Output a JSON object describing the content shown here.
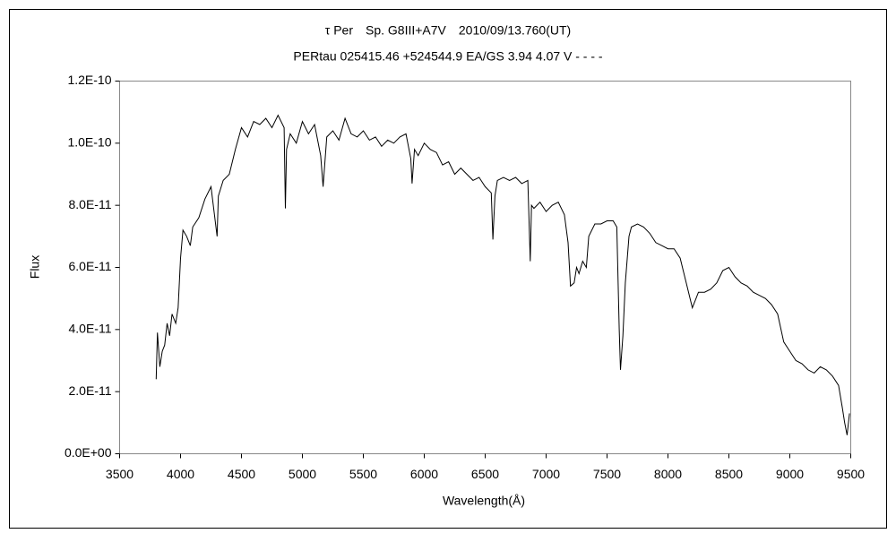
{
  "chart_data": {
    "type": "line",
    "title": "τ Per　Sp. G8III+A7V　2010/09/13.760(UT)",
    "subtitle": "PERtau 025415.46 +524544.9 EA/GS 3.94 4.07 V - - - -",
    "x_label": "Wavelength(Å)",
    "y_label": "Flux",
    "color": "#000000",
    "xlim": [
      3500,
      9500
    ],
    "xticks": [
      3500,
      4000,
      4500,
      5000,
      5500,
      6000,
      6500,
      7000,
      7500,
      8000,
      8500,
      9000,
      9500
    ],
    "ylim": [
      0,
      1.2e-10
    ],
    "yticks": [
      {
        "value": 0,
        "label": "0.0E+00"
      },
      {
        "value": 2e-11,
        "label": "2.0E-11"
      },
      {
        "value": 4e-11,
        "label": "4.0E-11"
      },
      {
        "value": 6e-11,
        "label": "6.0E-11"
      },
      {
        "value": 8e-11,
        "label": "8.0E-11"
      },
      {
        "value": 1e-10,
        "label": "1.0E-10"
      },
      {
        "value": 1.2e-10,
        "label": "1.2E-10"
      }
    ],
    "x": [
      3800,
      3810,
      3830,
      3850,
      3870,
      3890,
      3910,
      3930,
      3960,
      3980,
      4000,
      4020,
      4050,
      4080,
      4100,
      4150,
      4200,
      4250,
      4300,
      4310,
      4350,
      4400,
      4450,
      4500,
      4550,
      4600,
      4650,
      4700,
      4750,
      4800,
      4850,
      4860,
      4870,
      4900,
      4950,
      5000,
      5050,
      5100,
      5150,
      5170,
      5200,
      5250,
      5300,
      5350,
      5400,
      5450,
      5500,
      5550,
      5600,
      5650,
      5700,
      5750,
      5800,
      5850,
      5890,
      5900,
      5920,
      5950,
      6000,
      6050,
      6100,
      6150,
      6200,
      6250,
      6300,
      6350,
      6400,
      6450,
      6500,
      6550,
      6563,
      6580,
      6600,
      6650,
      6700,
      6750,
      6800,
      6850,
      6870,
      6880,
      6900,
      6950,
      7000,
      7050,
      7100,
      7150,
      7180,
      7200,
      7230,
      7250,
      7270,
      7300,
      7330,
      7350,
      7400,
      7450,
      7500,
      7550,
      7580,
      7600,
      7610,
      7630,
      7650,
      7680,
      7700,
      7750,
      7800,
      7850,
      7900,
      7950,
      8000,
      8050,
      8100,
      8150,
      8200,
      8230,
      8250,
      8300,
      8350,
      8400,
      8450,
      8500,
      8550,
      8600,
      8650,
      8700,
      8750,
      8800,
      8850,
      8900,
      8950,
      9000,
      9050,
      9100,
      9150,
      9200,
      9250,
      9300,
      9350,
      9400,
      9430,
      9450,
      9470,
      9490
    ],
    "values": [
      2.4e-11,
      3.9e-11,
      2.8e-11,
      3.3e-11,
      3.5e-11,
      4.2e-11,
      3.8e-11,
      4.5e-11,
      4.2e-11,
      4.7e-11,
      6.3e-11,
      7.2e-11,
      7e-11,
      6.7e-11,
      7.3e-11,
      7.6e-11,
      8.2e-11,
      8.6e-11,
      7e-11,
      8.3e-11,
      8.8e-11,
      9e-11,
      9.8e-11,
      1.05e-10,
      1.02e-10,
      1.07e-10,
      1.06e-10,
      1.08e-10,
      1.05e-10,
      1.09e-10,
      1.05e-10,
      7.9e-11,
      9.8e-11,
      1.03e-10,
      1e-10,
      1.07e-10,
      1.03e-10,
      1.06e-10,
      9.6e-11,
      8.6e-11,
      1.02e-10,
      1.04e-10,
      1.01e-10,
      1.08e-10,
      1.03e-10,
      1.02e-10,
      1.04e-10,
      1.01e-10,
      1.02e-10,
      9.9e-11,
      1.01e-10,
      1e-10,
      1.02e-10,
      1.03e-10,
      9.5e-11,
      8.7e-11,
      9.8e-11,
      9.6e-11,
      1e-10,
      9.8e-11,
      9.7e-11,
      9.3e-11,
      9.4e-11,
      9e-11,
      9.2e-11,
      9e-11,
      8.8e-11,
      8.9e-11,
      8.6e-11,
      8.4e-11,
      6.9e-11,
      8.3e-11,
      8.8e-11,
      8.9e-11,
      8.8e-11,
      8.9e-11,
      8.7e-11,
      8.8e-11,
      6.2e-11,
      8e-11,
      7.9e-11,
      8.1e-11,
      7.8e-11,
      8e-11,
      8.1e-11,
      7.7e-11,
      6.8e-11,
      5.4e-11,
      5.5e-11,
      6e-11,
      5.8e-11,
      6.2e-11,
      6e-11,
      7e-11,
      7.4e-11,
      7.4e-11,
      7.5e-11,
      7.5e-11,
      7.3e-11,
      4e-11,
      2.7e-11,
      3.8e-11,
      5.5e-11,
      7e-11,
      7.3e-11,
      7.4e-11,
      7.3e-11,
      7.1e-11,
      6.8e-11,
      6.7e-11,
      6.6e-11,
      6.6e-11,
      6.3e-11,
      5.5e-11,
      4.7e-11,
      5e-11,
      5.2e-11,
      5.2e-11,
      5.3e-11,
      5.5e-11,
      5.9e-11,
      6e-11,
      5.7e-11,
      5.5e-11,
      5.4e-11,
      5.2e-11,
      5.1e-11,
      5e-11,
      4.8e-11,
      4.5e-11,
      3.6e-11,
      3.3e-11,
      3e-11,
      2.9e-11,
      2.7e-11,
      2.6e-11,
      2.8e-11,
      2.7e-11,
      2.5e-11,
      2.2e-11,
      1.5e-11,
      1e-11,
      6e-12,
      1.3e-11
    ]
  }
}
